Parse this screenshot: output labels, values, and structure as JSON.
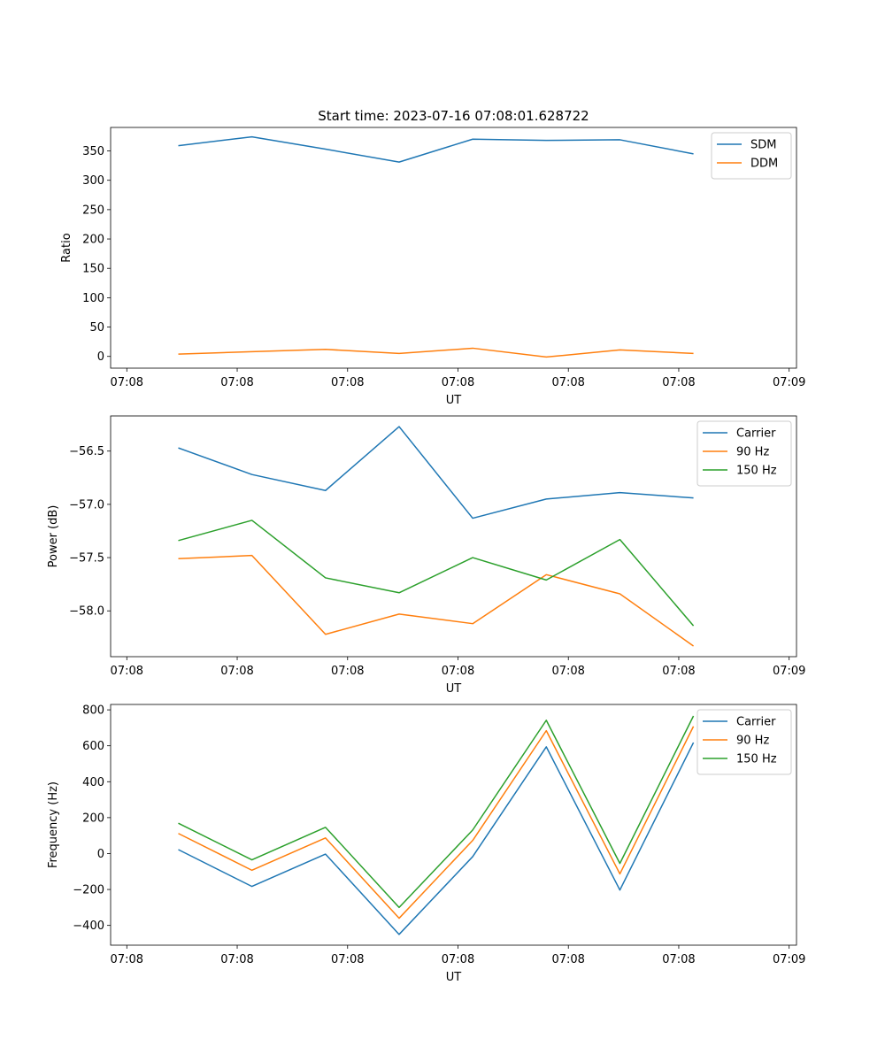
{
  "figure_title": "Start time: 2023-07-16 07:08:01.628722",
  "chart_data": [
    {
      "type": "line",
      "title": "Start time: 2023-07-16 07:08:01.628722",
      "xlabel": "UT",
      "ylabel": "Ratio",
      "xlim": [
        -0.36,
        4.3
      ],
      "x_ticks": [
        {
          "value": -0.25,
          "label": "07:08"
        },
        {
          "value": 0.5,
          "label": "07:08"
        },
        {
          "value": 1.25,
          "label": "07:08"
        },
        {
          "value": 2.0,
          "label": "07:08"
        },
        {
          "value": 2.75,
          "label": "07:08"
        },
        {
          "value": 3.5,
          "label": "07:08"
        },
        {
          "value": 4.25,
          "label": "07:09"
        }
      ],
      "ylim": [
        -20,
        390
      ],
      "y_ticks": [
        {
          "value": 0,
          "label": "0"
        },
        {
          "value": 50,
          "label": "50"
        },
        {
          "value": 100,
          "label": "100"
        },
        {
          "value": 150,
          "label": "150"
        },
        {
          "value": 200,
          "label": "200"
        },
        {
          "value": 250,
          "label": "250"
        },
        {
          "value": 300,
          "label": "300"
        },
        {
          "value": 350,
          "label": "350"
        }
      ],
      "x": [
        0.1,
        0.6,
        1.1,
        1.6,
        2.1,
        2.6,
        3.1,
        3.6
      ],
      "series": [
        {
          "name": "SDM",
          "color": "#1f77b4",
          "values": [
            359,
            374,
            353,
            331,
            370,
            368,
            369,
            345
          ]
        },
        {
          "name": "DDM",
          "color": "#ff7f0e",
          "values": [
            4,
            8,
            12,
            5,
            14,
            -1,
            11,
            5
          ]
        }
      ],
      "legend": "top-right"
    },
    {
      "type": "line",
      "title": "",
      "xlabel": "UT",
      "ylabel": "Power (dB)",
      "xlim": [
        -0.36,
        4.3
      ],
      "x_ticks": [
        {
          "value": -0.25,
          "label": "07:08"
        },
        {
          "value": 0.5,
          "label": "07:08"
        },
        {
          "value": 1.25,
          "label": "07:08"
        },
        {
          "value": 2.0,
          "label": "07:08"
        },
        {
          "value": 2.75,
          "label": "07:08"
        },
        {
          "value": 3.5,
          "label": "07:08"
        },
        {
          "value": 4.25,
          "label": "07:09"
        }
      ],
      "ylim": [
        -58.43,
        -56.17
      ],
      "y_ticks": [
        {
          "value": -56.5,
          "label": "−56.5"
        },
        {
          "value": -57.0,
          "label": "−57.0"
        },
        {
          "value": -57.5,
          "label": "−57.5"
        },
        {
          "value": -58.0,
          "label": "−58.0"
        }
      ],
      "x": [
        0.1,
        0.6,
        1.1,
        1.6,
        2.1,
        2.6,
        3.1,
        3.6
      ],
      "series": [
        {
          "name": "Carrier",
          "color": "#1f77b4",
          "values": [
            -56.47,
            -56.72,
            -56.87,
            -56.27,
            -57.13,
            -56.95,
            -56.89,
            -56.94
          ]
        },
        {
          "name": "90 Hz",
          "color": "#ff7f0e",
          "values": [
            -57.51,
            -57.48,
            -58.22,
            -58.03,
            -58.12,
            -57.66,
            -57.84,
            -58.33
          ]
        },
        {
          "name": "150 Hz",
          "color": "#2ca02c",
          "values": [
            -57.34,
            -57.15,
            -57.69,
            -57.83,
            -57.5,
            -57.71,
            -57.33,
            -58.14
          ]
        }
      ],
      "legend": "top-right"
    },
    {
      "type": "line",
      "title": "",
      "xlabel": "UT",
      "ylabel": "Frequency (Hz)",
      "xlim": [
        -0.36,
        4.3
      ],
      "x_ticks": [
        {
          "value": -0.25,
          "label": "07:08"
        },
        {
          "value": 0.5,
          "label": "07:08"
        },
        {
          "value": 1.25,
          "label": "07:08"
        },
        {
          "value": 2.0,
          "label": "07:08"
        },
        {
          "value": 2.75,
          "label": "07:08"
        },
        {
          "value": 3.5,
          "label": "07:08"
        },
        {
          "value": 4.25,
          "label": "07:09"
        }
      ],
      "ylim": [
        -510,
        830
      ],
      "y_ticks": [
        {
          "value": -400,
          "label": "−400"
        },
        {
          "value": -200,
          "label": "−200"
        },
        {
          "value": 0,
          "label": "0"
        },
        {
          "value": 200,
          "label": "200"
        },
        {
          "value": 400,
          "label": "400"
        },
        {
          "value": 600,
          "label": "600"
        },
        {
          "value": 800,
          "label": "800"
        }
      ],
      "x": [
        0.1,
        0.6,
        1.1,
        1.6,
        2.1,
        2.6,
        3.1,
        3.6
      ],
      "series": [
        {
          "name": "Carrier",
          "color": "#1f77b4",
          "values": [
            22,
            -183,
            -3,
            -450,
            -17,
            594,
            -203,
            618
          ]
        },
        {
          "name": "90 Hz",
          "color": "#ff7f0e",
          "values": [
            112,
            -93,
            87,
            -360,
            73,
            684,
            -113,
            708
          ]
        },
        {
          "name": "150 Hz",
          "color": "#2ca02c",
          "values": [
            169,
            -35,
            146,
            -300,
            131,
            742,
            -55,
            766
          ]
        }
      ],
      "legend": "top-right"
    }
  ]
}
